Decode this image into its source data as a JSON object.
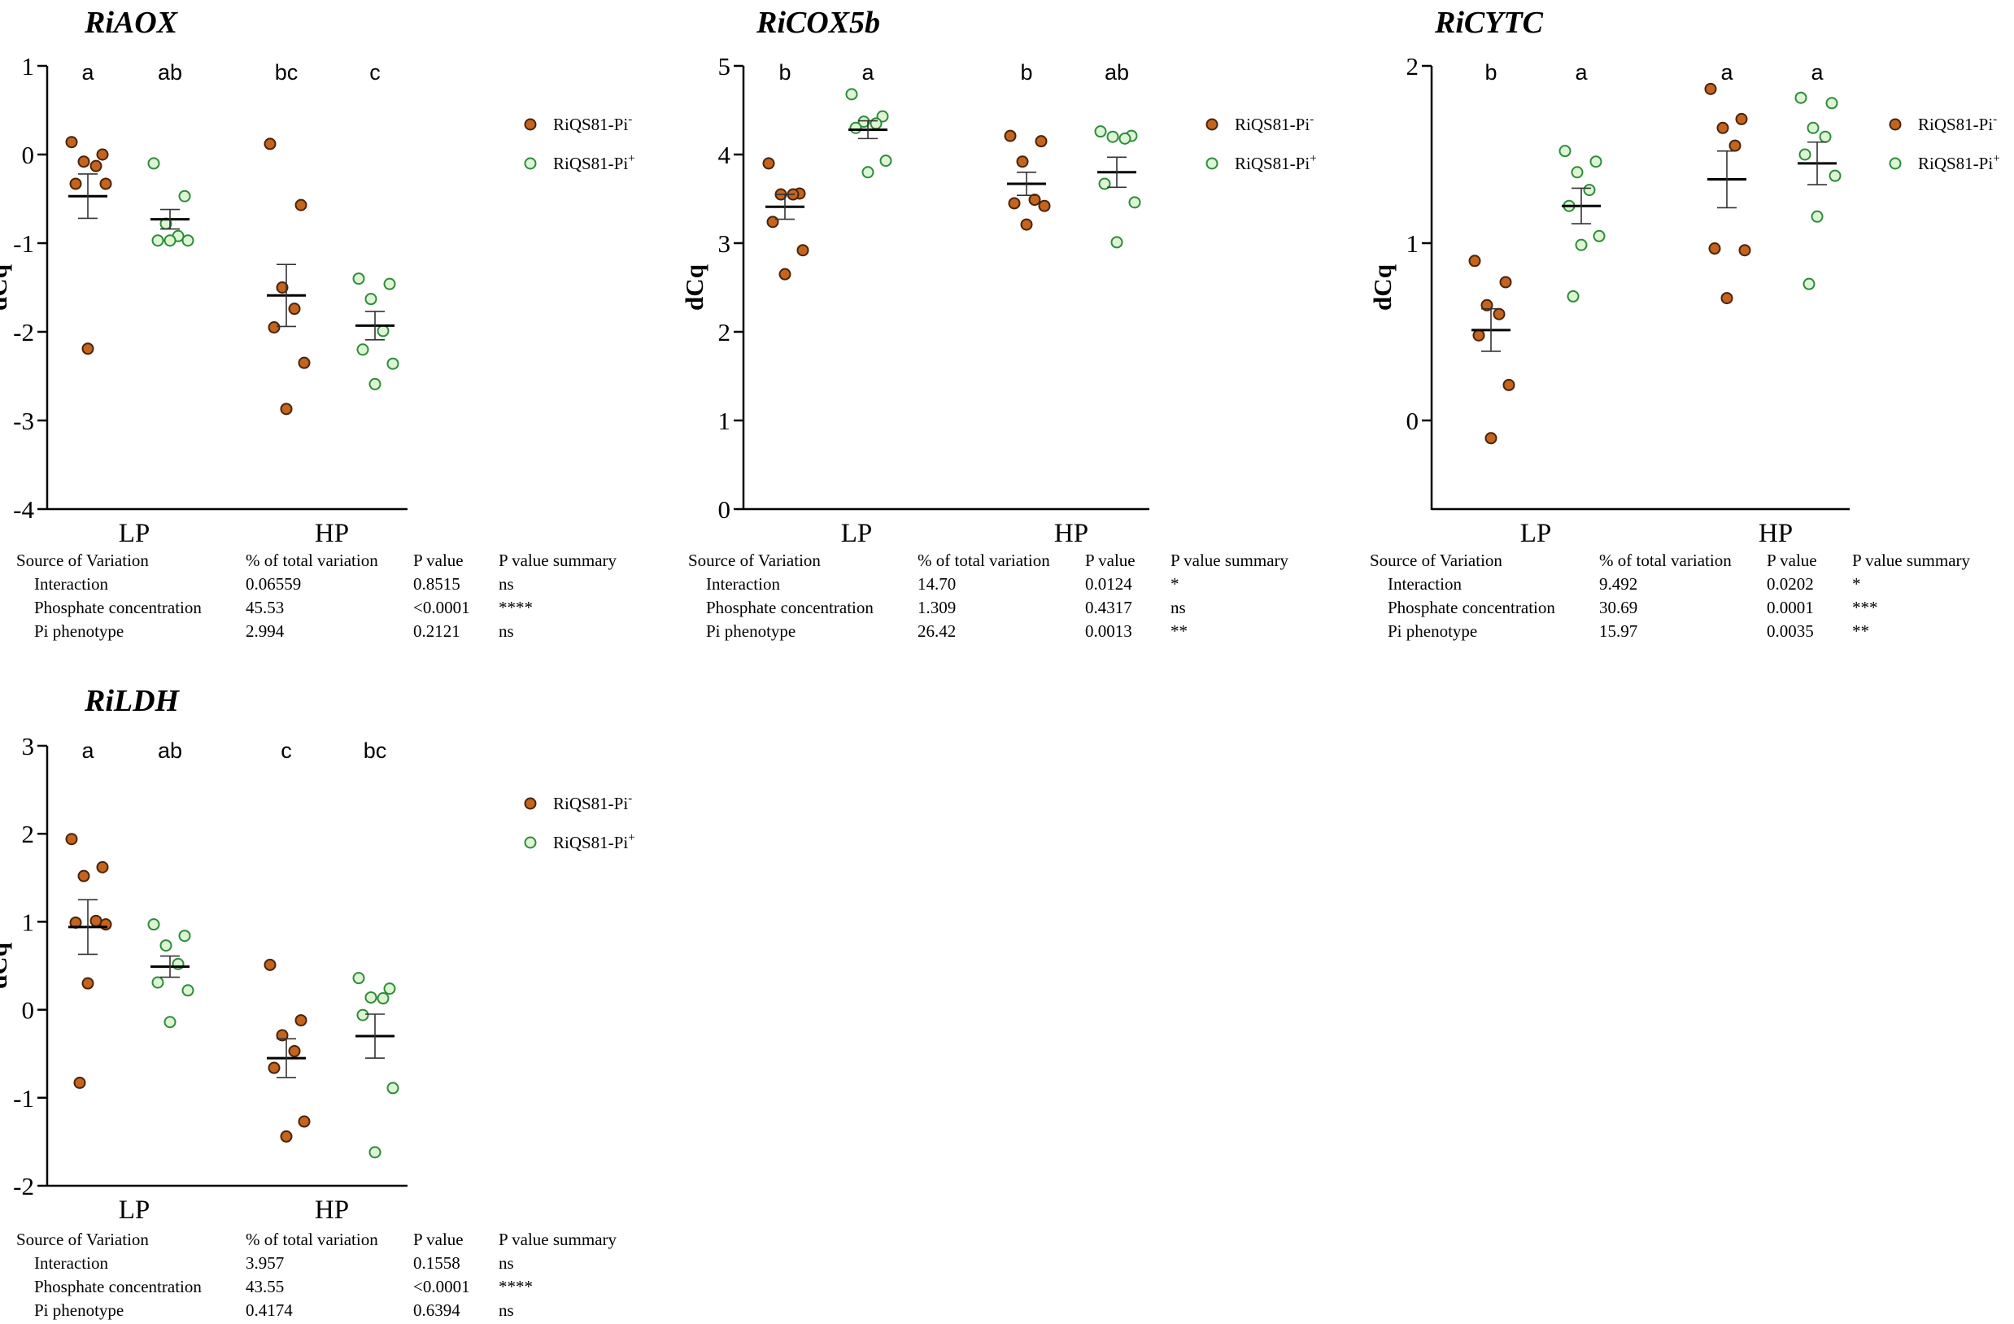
{
  "legend": {
    "minus_base": "RiQS81-Pi",
    "minus_sup": "-",
    "plus_base": "RiQS81-Pi",
    "plus_sup": "+"
  },
  "colors": {
    "orange": "#c4641e",
    "green": "#dcf5d2",
    "green_edge": "#2e8b3a",
    "orange_edge": "#4a230a"
  },
  "stats_header": {
    "source": "Source of Variation",
    "pct": "% of total variation",
    "p": "P value",
    "summary": "P value summary"
  },
  "chart_data": [
    {
      "type": "scatter",
      "title": "RiAOX",
      "ylabel": "dCq",
      "ylim": [
        -4,
        1
      ],
      "yticks": [
        "1",
        "0",
        "-1",
        "-2",
        "-3",
        "-4"
      ],
      "categories": [
        "LP",
        "HP"
      ],
      "letters": [
        "a",
        "ab",
        "bc",
        "c"
      ],
      "series": [
        {
          "name": "RiQS81-Pi-",
          "color": "orange",
          "points": [
            [
              0.14,
              0.0,
              -0.08,
              -0.13,
              -0.33,
              -0.33,
              -2.19
            ],
            [
              0.12,
              -0.57,
              -1.5,
              -1.74,
              -1.95,
              -2.35,
              -2.87
            ]
          ],
          "mean": [
            -0.47,
            -1.59
          ],
          "sem": [
            0.25,
            0.35
          ]
        },
        {
          "name": "RiQS81-Pi+",
          "color": "green",
          "points": [
            [
              -0.1,
              -0.47,
              -0.78,
              -0.92,
              -0.97,
              -0.97,
              -0.97
            ],
            [
              -1.4,
              -1.46,
              -1.63,
              -1.99,
              -2.2,
              -2.36,
              -2.59
            ]
          ],
          "mean": [
            -0.73,
            -1.93
          ],
          "sem": [
            0.11,
            0.16
          ]
        }
      ],
      "stats": [
        {
          "source": "Interaction",
          "pct": "0.06559",
          "p": "0.8515",
          "summary": "ns"
        },
        {
          "source": "Phosphate concentration",
          "pct": "45.53",
          "p": "<0.0001",
          "summary": "****"
        },
        {
          "source": "Pi phenotype",
          "pct": "2.994",
          "p": "0.2121",
          "summary": "ns"
        }
      ]
    },
    {
      "type": "scatter",
      "title": "RiCOX5b",
      "ylabel": "dCq",
      "ylim": [
        0,
        5
      ],
      "yticks": [
        "5",
        "4",
        "3",
        "2",
        "1",
        "0"
      ],
      "categories": [
        "LP",
        "HP"
      ],
      "letters": [
        "b",
        "a",
        "b",
        "ab"
      ],
      "series": [
        {
          "name": "RiQS81-Pi-",
          "color": "orange",
          "points": [
            [
              3.9,
              3.56,
              3.55,
              3.55,
              3.24,
              2.92,
              2.65
            ],
            [
              4.21,
              4.15,
              3.92,
              3.49,
              3.45,
              3.42,
              3.21
            ]
          ],
          "mean": [
            3.41,
            3.67
          ],
          "sem": [
            0.14,
            0.13
          ]
        },
        {
          "name": "RiQS81-Pi+",
          "color": "green",
          "points": [
            [
              4.68,
              4.43,
              4.37,
              4.35,
              4.3,
              3.93,
              3.8
            ],
            [
              4.26,
              4.21,
              4.2,
              4.18,
              3.67,
              3.46,
              3.01
            ]
          ],
          "mean": [
            4.28,
            3.8
          ],
          "sem": [
            0.1,
            0.17
          ]
        }
      ],
      "stats": [
        {
          "source": "Interaction",
          "pct": "14.70",
          "p": "0.0124",
          "summary": "*"
        },
        {
          "source": "Phosphate concentration",
          "pct": "1.309",
          "p": "0.4317",
          "summary": "ns"
        },
        {
          "source": "Pi phenotype",
          "pct": "26.42",
          "p": "0.0013",
          "summary": "**"
        }
      ]
    },
    {
      "type": "scatter",
      "title": "RiCYTC",
      "ylabel": "dCq",
      "ylim": [
        -0.5,
        2
      ],
      "yticks": [
        "2",
        "1",
        "0"
      ],
      "categories": [
        "LP",
        "HP"
      ],
      "letters": [
        "b",
        "a",
        "a",
        "a"
      ],
      "series": [
        {
          "name": "RiQS81-Pi-",
          "color": "orange",
          "points": [
            [
              0.9,
              0.78,
              0.65,
              0.6,
              0.48,
              0.2,
              -0.1
            ],
            [
              1.87,
              1.7,
              1.65,
              1.55,
              0.97,
              0.96,
              0.69
            ]
          ],
          "mean": [
            0.51,
            1.36
          ],
          "sem": [
            0.12,
            0.16
          ]
        },
        {
          "name": "RiQS81-Pi+",
          "color": "green",
          "points": [
            [
              1.52,
              1.46,
              1.4,
              1.3,
              1.21,
              1.04,
              0.99,
              0.7
            ],
            [
              1.82,
              1.79,
              1.65,
              1.6,
              1.5,
              1.38,
              1.15,
              0.77
            ]
          ],
          "mean": [
            1.21,
            1.45
          ],
          "sem": [
            0.1,
            0.12
          ]
        }
      ],
      "stats": [
        {
          "source": "Interaction",
          "pct": "9.492",
          "p": "0.0202",
          "summary": "*"
        },
        {
          "source": "Phosphate concentration",
          "pct": "30.69",
          "p": "0.0001",
          "summary": "***"
        },
        {
          "source": "Pi phenotype",
          "pct": "15.97",
          "p": "0.0035",
          "summary": "**"
        }
      ]
    },
    {
      "type": "scatter",
      "title": "RiLDH",
      "ylabel": "dCq",
      "ylim": [
        -2,
        3
      ],
      "yticks": [
        "3",
        "2",
        "1",
        "0",
        "-1",
        "-2"
      ],
      "categories": [
        "LP",
        "HP"
      ],
      "letters": [
        "a",
        "ab",
        "c",
        "bc"
      ],
      "series": [
        {
          "name": "RiQS81-Pi-",
          "color": "orange",
          "points": [
            [
              1.94,
              1.62,
              1.52,
              1.01,
              0.99,
              0.97,
              0.3,
              -0.83
            ],
            [
              0.51,
              -0.12,
              -0.29,
              -0.47,
              -0.66,
              -1.27,
              -1.44
            ]
          ],
          "mean": [
            0.94,
            -0.55
          ],
          "sem": [
            0.31,
            0.22
          ]
        },
        {
          "name": "RiQS81-Pi+",
          "color": "green",
          "points": [
            [
              0.97,
              0.84,
              0.73,
              0.52,
              0.31,
              0.22,
              -0.14
            ],
            [
              0.36,
              0.24,
              0.14,
              0.13,
              -0.06,
              -0.89,
              -1.62
            ]
          ],
          "mean": [
            0.49,
            -0.3
          ],
          "sem": [
            0.12,
            0.25
          ]
        }
      ],
      "stats": [
        {
          "source": "Interaction",
          "pct": "3.957",
          "p": "0.1558",
          "summary": "ns"
        },
        {
          "source": "Phosphate concentration",
          "pct": "43.55",
          "p": "<0.0001",
          "summary": "****"
        },
        {
          "source": "Pi phenotype",
          "pct": "0.4174",
          "p": "0.6394",
          "summary": "ns"
        }
      ]
    }
  ]
}
